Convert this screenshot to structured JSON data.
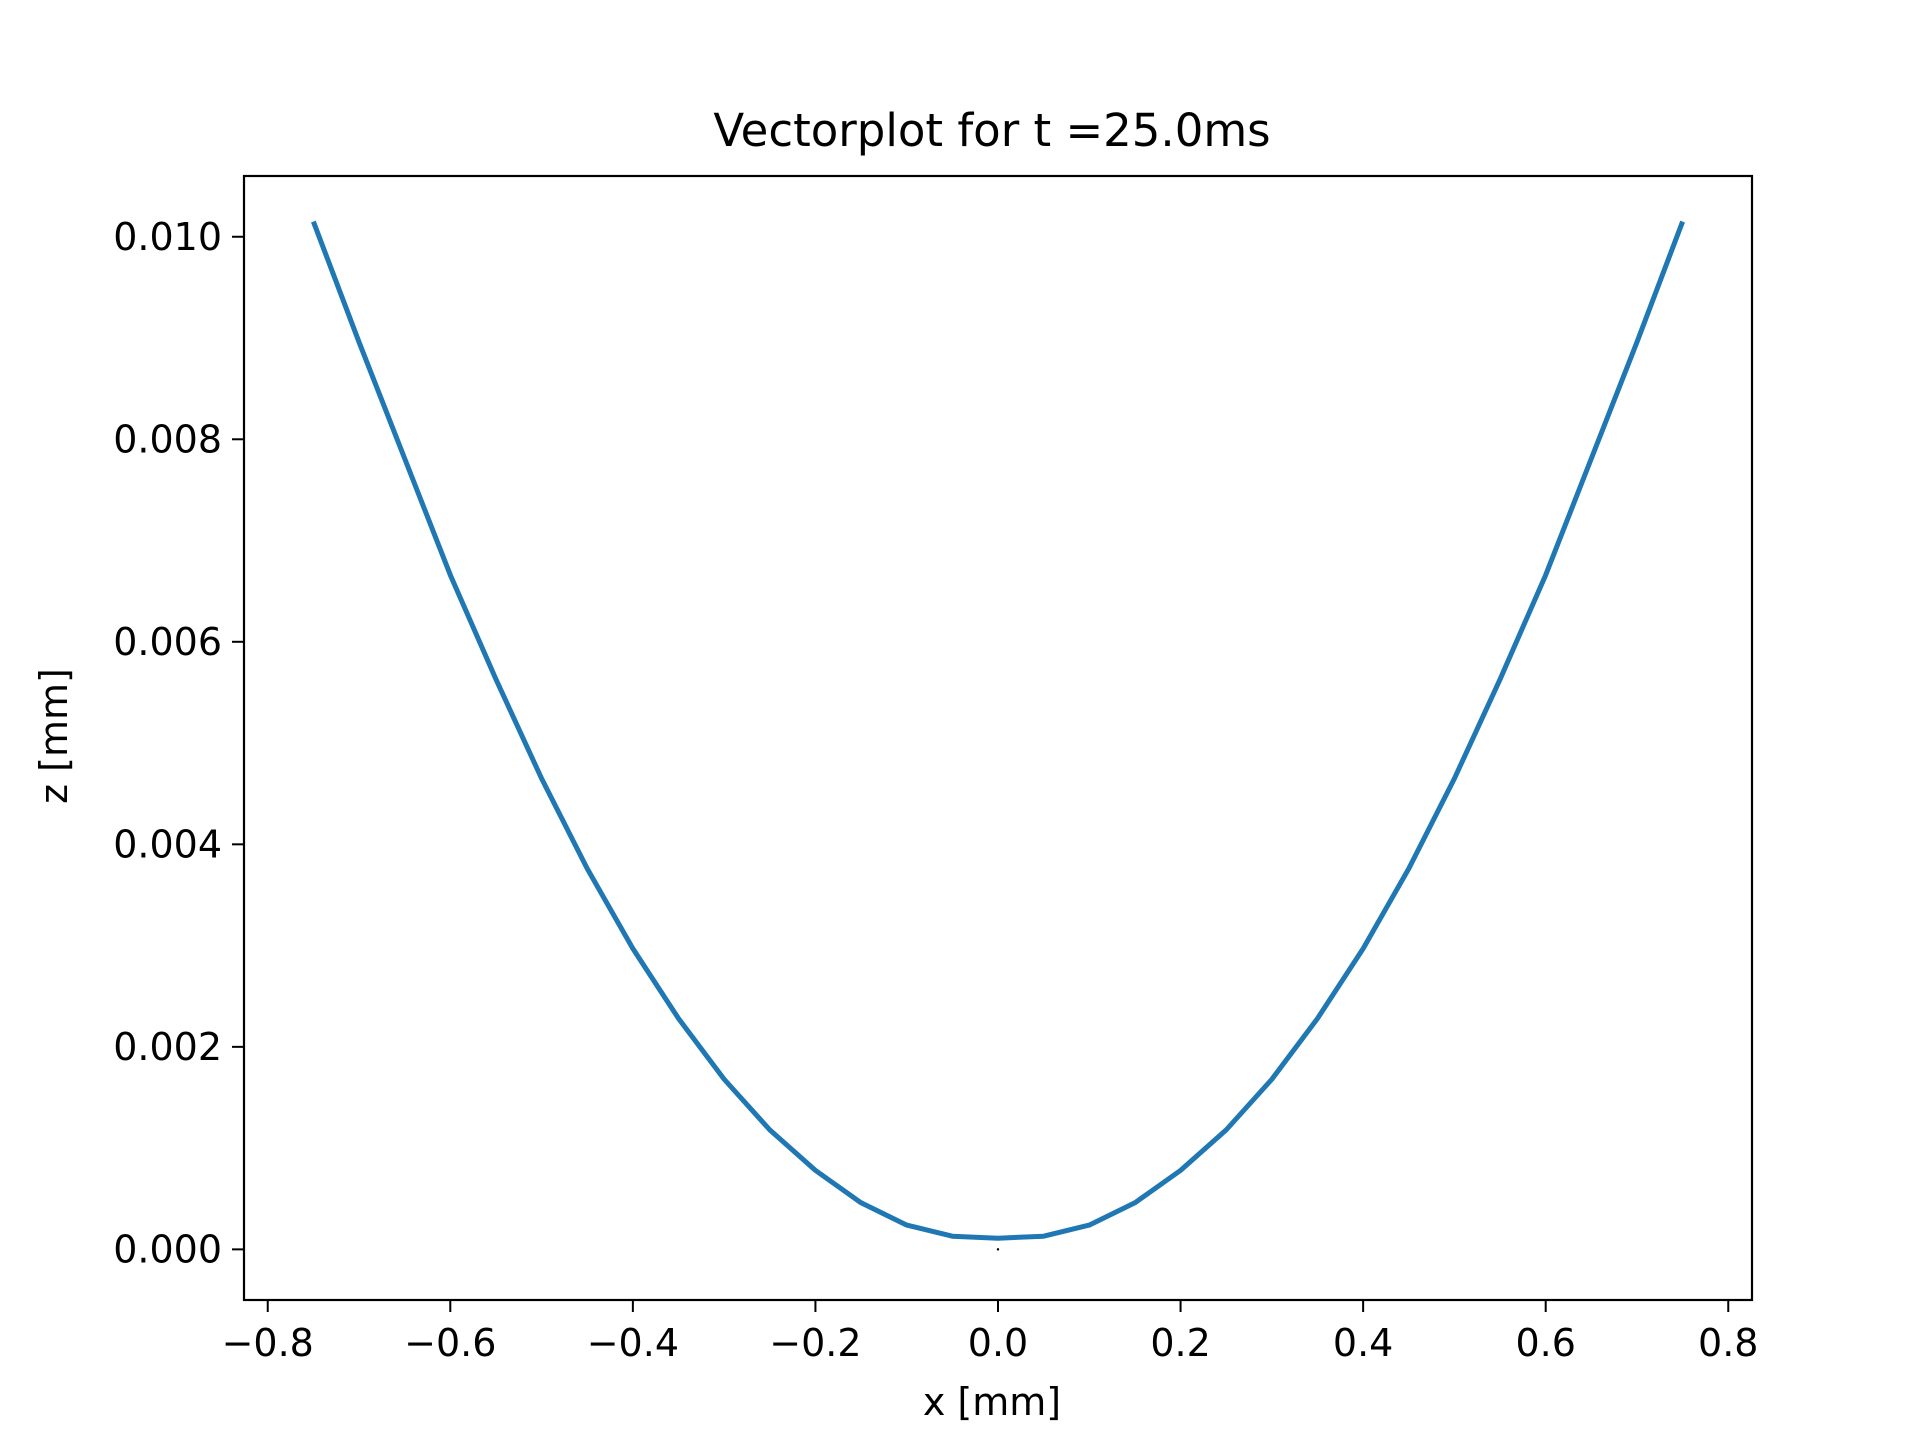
{
  "chart_data": {
    "type": "line",
    "title": "Vectorplot for t =25.0ms",
    "xlabel": "x [mm]",
    "ylabel": "z [mm]",
    "xlim": [
      -0.826,
      0.826
    ],
    "ylim": [
      -0.0005,
      0.0106
    ],
    "grid": false,
    "legend": "none",
    "x_ticks": [
      -0.8,
      -0.6,
      -0.4,
      -0.2,
      0.0,
      0.2,
      0.4,
      0.6,
      0.8
    ],
    "x_tick_labels": [
      "−0.8",
      "−0.6",
      "−0.4",
      "−0.2",
      "0.0",
      "0.2",
      "0.4",
      "0.6",
      "0.8"
    ],
    "y_ticks": [
      0.0,
      0.002,
      0.004,
      0.006,
      0.008,
      0.01
    ],
    "y_tick_labels": [
      "0.000",
      "0.002",
      "0.004",
      "0.006",
      "0.008",
      "0.010"
    ],
    "series": [
      {
        "color": "#1f77b4",
        "x": [
          -0.75,
          -0.7,
          -0.65,
          -0.6,
          -0.55,
          -0.5,
          -0.45,
          -0.4,
          -0.35,
          -0.3,
          -0.25,
          -0.2,
          -0.15,
          -0.1,
          -0.05,
          0.0,
          0.05,
          0.1,
          0.15,
          0.2,
          0.25,
          0.3,
          0.35,
          0.4,
          0.45,
          0.5,
          0.55,
          0.6,
          0.65,
          0.7,
          0.75
        ],
        "y": [
          0.01015,
          0.00896,
          0.00781,
          0.00666,
          0.00563,
          0.00465,
          0.00376,
          0.00297,
          0.00228,
          0.00168,
          0.00118,
          0.00078,
          0.00046,
          0.00024,
          0.00013,
          0.00011,
          0.00013,
          0.00024,
          0.00046,
          0.00078,
          0.00118,
          0.00168,
          0.00228,
          0.00297,
          0.00376,
          0.00465,
          0.00563,
          0.00666,
          0.00781,
          0.00896,
          0.01015
        ]
      }
    ],
    "marker_point": {
      "x": 0.0,
      "y": 0.0
    }
  }
}
